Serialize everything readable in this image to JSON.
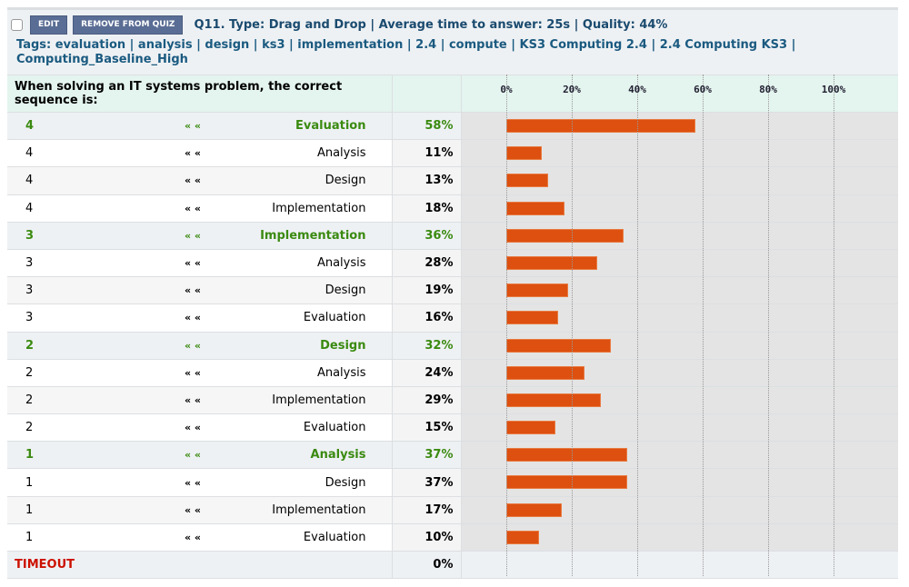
{
  "header": {
    "edit_label": "EDIT",
    "remove_label": "REMOVE FROM QUIZ",
    "title": "Q11. Type: Drag and Drop | Average time to answer: 25s | Quality: 44%",
    "tags": "Tags: evaluation | analysis | design | ks3 | implementation | 2.4 | compute | KS3 Computing 2.4 | 2.4 Computing KS3 | Computing_Baseline_High"
  },
  "question": "When solving an IT systems problem, the correct sequence is:",
  "arrows": "« «",
  "axis_ticks": [
    "0%",
    "20%",
    "40%",
    "60%",
    "80%",
    "100%"
  ],
  "rows": [
    {
      "rank": "4",
      "label": "Evaluation",
      "pct": "58%",
      "value": 58,
      "correct": true
    },
    {
      "rank": "4",
      "label": "Analysis",
      "pct": "11%",
      "value": 11
    },
    {
      "rank": "4",
      "label": "Design",
      "pct": "13%",
      "value": 13
    },
    {
      "rank": "4",
      "label": "Implementation",
      "pct": "18%",
      "value": 18
    },
    {
      "rank": "3",
      "label": "Implementation",
      "pct": "36%",
      "value": 36,
      "correct": true
    },
    {
      "rank": "3",
      "label": "Analysis",
      "pct": "28%",
      "value": 28
    },
    {
      "rank": "3",
      "label": "Design",
      "pct": "19%",
      "value": 19
    },
    {
      "rank": "3",
      "label": "Evaluation",
      "pct": "16%",
      "value": 16
    },
    {
      "rank": "2",
      "label": "Design",
      "pct": "32%",
      "value": 32,
      "correct": true
    },
    {
      "rank": "2",
      "label": "Analysis",
      "pct": "24%",
      "value": 24
    },
    {
      "rank": "2",
      "label": "Implementation",
      "pct": "29%",
      "value": 29
    },
    {
      "rank": "2",
      "label": "Evaluation",
      "pct": "15%",
      "value": 15
    },
    {
      "rank": "1",
      "label": "Analysis",
      "pct": "37%",
      "value": 37,
      "correct": true
    },
    {
      "rank": "1",
      "label": "Design",
      "pct": "37%",
      "value": 37
    },
    {
      "rank": "1",
      "label": "Implementation",
      "pct": "17%",
      "value": 17
    },
    {
      "rank": "1",
      "label": "Evaluation",
      "pct": "10%",
      "value": 10
    }
  ],
  "timeout": {
    "label": "TIMEOUT",
    "pct": "0%",
    "value": 0
  },
  "colors": {
    "bar": "#dd5010",
    "correct": "#3a8a10",
    "timeout": "#cc1100"
  }
}
